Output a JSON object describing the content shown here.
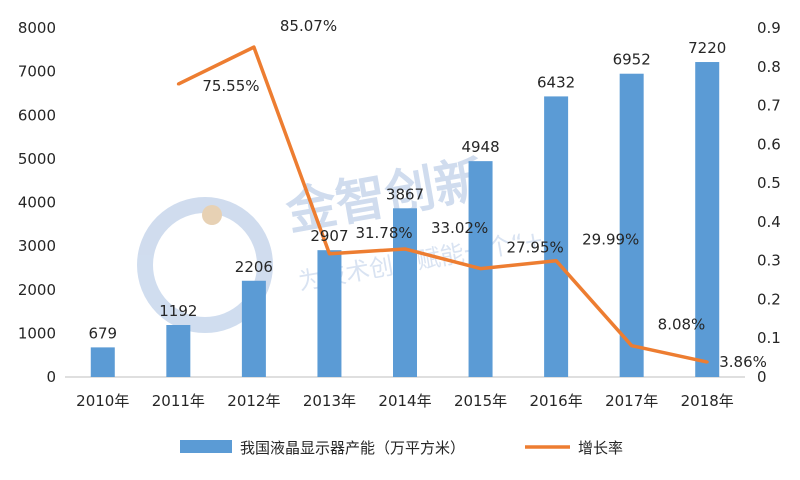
{
  "chart_data": {
    "type": "bar",
    "categories": [
      "2010年",
      "2011年",
      "2012年",
      "2013年",
      "2014年",
      "2015年",
      "2016年",
      "2017年",
      "2018年"
    ],
    "series": [
      {
        "name": "我国液晶显示器产能（万平方米）",
        "type": "bar",
        "axis": "left",
        "color": "#5b9bd5",
        "values": [
          679,
          1192,
          2206,
          2907,
          3867,
          4948,
          6432,
          6952,
          7220
        ],
        "labels": [
          "679",
          "1192",
          "2206",
          "2907",
          "3867",
          "4948",
          "6432",
          "6952",
          "7220"
        ]
      },
      {
        "name": "增长率",
        "type": "line",
        "axis": "right",
        "color": "#ed7d31",
        "values": [
          null,
          0.7555,
          0.8507,
          0.3178,
          0.3302,
          0.2795,
          0.2999,
          0.0808,
          0.0386
        ],
        "labels": [
          "",
          "75.55%",
          "85.07%",
          "31.78%",
          "33.02%",
          "27.95%",
          "29.99%",
          "8.08%",
          "3.86%"
        ]
      }
    ],
    "ylim": [
      0,
      8000
    ],
    "yticks": [
      0,
      1000,
      2000,
      3000,
      4000,
      5000,
      6000,
      7000,
      8000
    ],
    "ylim_right": [
      0,
      0.9
    ],
    "yticks_right": [
      "0",
      "0.1",
      "0.2",
      "0.3",
      "0.4",
      "0.5",
      "0.6",
      "0.7",
      "0.8",
      "0.9"
    ],
    "legend": "bottom",
    "grid": false
  },
  "watermark": {
    "title": "金智创新",
    "subtitle": "为技术创新赋能一个“+”"
  }
}
